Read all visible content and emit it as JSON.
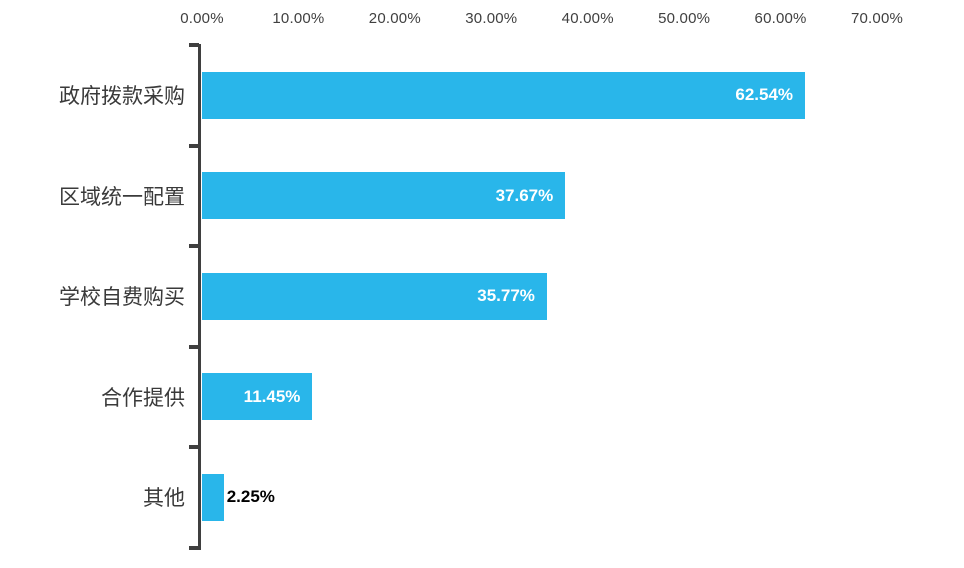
{
  "chart_data": {
    "type": "bar",
    "orientation": "horizontal",
    "title": "",
    "xlabel": "",
    "ylabel": "",
    "categories": [
      "政府拨款采购",
      "区域统一配置",
      "学校自费购买",
      "合作提供",
      "其他"
    ],
    "values": [
      62.54,
      37.67,
      35.77,
      11.45,
      2.25
    ],
    "value_labels": [
      "62.54%",
      "37.67%",
      "35.77%",
      "11.45%",
      "2.25%"
    ],
    "x_axis": {
      "position": "top",
      "tick_labels": [
        "0.00%",
        "10.00%",
        "20.00%",
        "30.00%",
        "40.00%",
        "50.00%",
        "60.00%",
        "70.00%"
      ],
      "tick_values": [
        0,
        10,
        20,
        30,
        40,
        50,
        60,
        70
      ],
      "range": [
        0,
        70
      ]
    },
    "grid": false,
    "legend": false,
    "colors": {
      "bar": "#29B6EA",
      "value_label_inside": "#FFFFFF",
      "value_label_outside": "#000000",
      "axis_line": "#3F3F3F",
      "tick_label": "#404040",
      "category_label": "#3A3A3A"
    }
  }
}
